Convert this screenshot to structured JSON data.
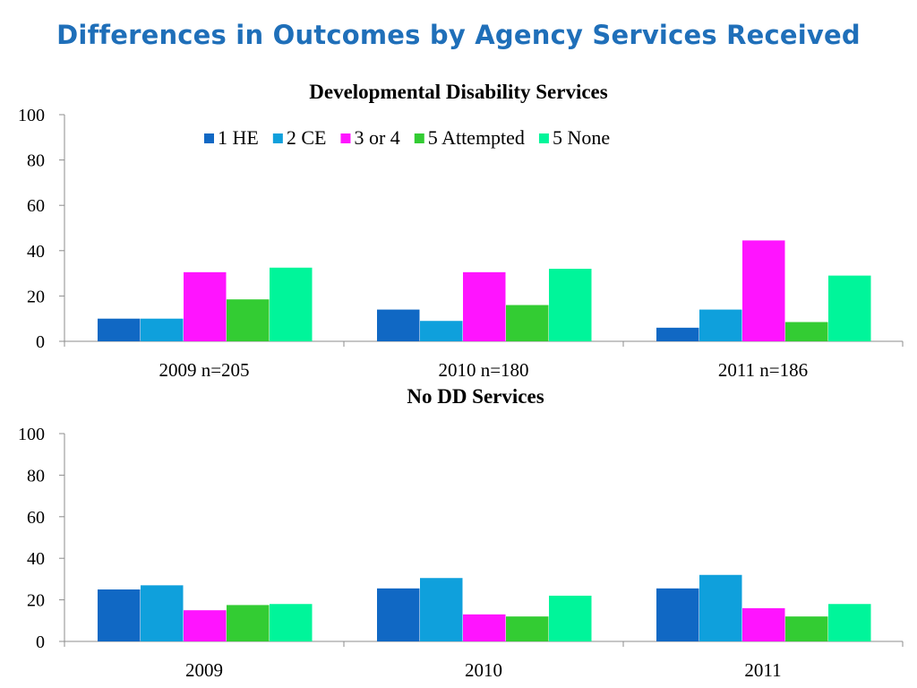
{
  "slide": {
    "title": "Differences in Outcomes by Agency Services Received"
  },
  "colors": {
    "title": "#1f6fb9",
    "series": [
      "#1068c4",
      "#0fa0dc",
      "#ff14ff",
      "#33cc33",
      "#00f59a"
    ]
  },
  "chart_data": [
    {
      "type": "bar",
      "title": "Developmental Disability Services",
      "categories": [
        "2009 n=205",
        "2010 n=180",
        "2011 n=186"
      ],
      "series": [
        {
          "name": "1  HE",
          "values": [
            10,
            14,
            6
          ]
        },
        {
          "name": "2 CE",
          "values": [
            10,
            9,
            14
          ]
        },
        {
          "name": "3 or 4",
          "values": [
            30.5,
            30.5,
            44.5
          ]
        },
        {
          "name": "5 Attempted",
          "values": [
            18.5,
            16,
            8.5
          ]
        },
        {
          "name": "5 None",
          "values": [
            32.5,
            32,
            29
          ]
        }
      ],
      "ylim": [
        0,
        100
      ],
      "yticks": [
        0,
        20,
        40,
        60,
        80,
        100
      ],
      "grid": false,
      "legend": "top"
    },
    {
      "type": "bar",
      "title": "No DD Services",
      "categories": [
        "2009",
        "2010",
        "2011"
      ],
      "series": [
        {
          "values": [
            25,
            25.5,
            25.5
          ]
        },
        {
          "values": [
            27,
            30.5,
            32
          ]
        },
        {
          "values": [
            15,
            13,
            16
          ]
        },
        {
          "values": [
            17.5,
            12,
            12
          ]
        },
        {
          "values": [
            18,
            22,
            18
          ]
        }
      ],
      "ylim": [
        0,
        100
      ],
      "yticks": [
        0,
        20,
        40,
        60,
        80,
        100
      ],
      "grid": false,
      "legend": "none"
    }
  ]
}
